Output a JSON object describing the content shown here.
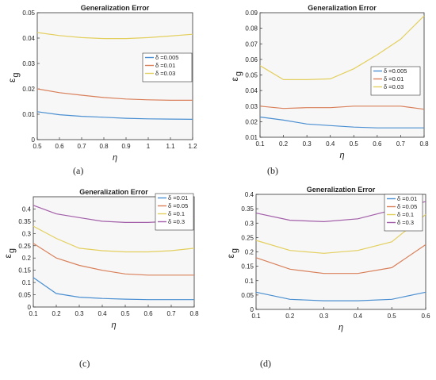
{
  "colors": {
    "series": [
      "#4a8fd1",
      "#d9805a",
      "#e3cf5e",
      "#a25ea8"
    ],
    "axis": "#333333",
    "grid": "#e6e6e6",
    "plot_bg": "#f7f7f7",
    "text": "#222222"
  },
  "chart_data": [
    {
      "type": "line",
      "caption": "(a)",
      "title": "Generalization Error",
      "ylabel_main": "ε",
      "ylabel_sub": "g",
      "xlabel": "η",
      "xlim": [
        0.5,
        1.2
      ],
      "ylim": [
        0,
        0.05
      ],
      "xticks": [
        "0.5",
        "0.6",
        "0.7",
        "0.8",
        "0.9",
        "1",
        "1.1",
        "1.2"
      ],
      "xtick_values": [
        0.5,
        0.6,
        0.7,
        0.8,
        0.9,
        1.0,
        1.1,
        1.2
      ],
      "yticks": [
        "0",
        "0.01",
        "0.02",
        "0.03",
        "0.04",
        "0.05"
      ],
      "ytick_values": [
        0,
        0.01,
        0.02,
        0.03,
        0.04,
        0.05
      ],
      "legend_placement": "center-right",
      "x": [
        0.5,
        0.6,
        0.7,
        0.8,
        0.9,
        1.0,
        1.1,
        1.2
      ],
      "series": [
        {
          "name": "δ =0.005",
          "color_index": 0,
          "values": [
            0.011,
            0.0098,
            0.0092,
            0.0088,
            0.0084,
            0.0082,
            0.0081,
            0.008
          ]
        },
        {
          "name": "δ =0.01",
          "color_index": 1,
          "values": [
            0.02,
            0.0185,
            0.0175,
            0.0166,
            0.016,
            0.0157,
            0.0155,
            0.0155
          ]
        },
        {
          "name": "δ =0.03",
          "color_index": 2,
          "values": [
            0.0422,
            0.041,
            0.0402,
            0.0398,
            0.0398,
            0.0402,
            0.0408,
            0.0415
          ]
        }
      ]
    },
    {
      "type": "line",
      "caption": "(b)",
      "title": "Generalization Error",
      "ylabel_main": "ε",
      "ylabel_sub": "g",
      "xlabel": "η",
      "xlim": [
        0.1,
        0.8
      ],
      "ylim": [
        0.01,
        0.09
      ],
      "xticks": [
        "0.1",
        "0.2",
        "0.3",
        "0.4",
        "0.5",
        "0.6",
        "0.7",
        "0.8"
      ],
      "xtick_values": [
        0.1,
        0.2,
        0.3,
        0.4,
        0.5,
        0.6,
        0.7,
        0.8
      ],
      "yticks": [
        "0.01",
        "0.02",
        "0.03",
        "0.04",
        "0.05",
        "0.06",
        "0.07",
        "0.08",
        "0.09"
      ],
      "ytick_values": [
        0.01,
        0.02,
        0.03,
        0.04,
        0.05,
        0.06,
        0.07,
        0.08,
        0.09
      ],
      "legend_placement": "center-right",
      "x": [
        0.1,
        0.2,
        0.3,
        0.4,
        0.5,
        0.6,
        0.7,
        0.8
      ],
      "series": [
        {
          "name": "δ =0.005",
          "color_index": 0,
          "values": [
            0.023,
            0.021,
            0.0185,
            0.0175,
            0.0165,
            0.016,
            0.016,
            0.016
          ]
        },
        {
          "name": "δ =0.01",
          "color_index": 1,
          "values": [
            0.03,
            0.0285,
            0.029,
            0.029,
            0.03,
            0.03,
            0.03,
            0.028
          ]
        },
        {
          "name": "δ =0.03",
          "color_index": 2,
          "values": [
            0.056,
            0.047,
            0.047,
            0.0475,
            0.054,
            0.063,
            0.073,
            0.088
          ]
        }
      ]
    },
    {
      "type": "line",
      "caption": "(c)",
      "title": "Generalization Error",
      "ylabel_main": "ε",
      "ylabel_sub": "g",
      "xlabel": "η",
      "xlim": [
        0.1,
        0.8
      ],
      "ylim": [
        0,
        0.45
      ],
      "xticks": [
        "0.1",
        "0.2",
        "0.3",
        "0.4",
        "0.5",
        "0.6",
        "0.7",
        "0.8"
      ],
      "xtick_values": [
        0.1,
        0.2,
        0.3,
        0.4,
        0.5,
        0.6,
        0.7,
        0.8
      ],
      "yticks": [
        "0",
        "0.05",
        "0.1",
        "0.15",
        "0.2",
        "0.25",
        "0.3",
        "0.35",
        "0.4"
      ],
      "ytick_values": [
        0,
        0.05,
        0.1,
        0.15,
        0.2,
        0.25,
        0.3,
        0.35,
        0.4
      ],
      "legend_placement": "top-right",
      "x": [
        0.1,
        0.2,
        0.3,
        0.4,
        0.5,
        0.6,
        0.7,
        0.8
      ],
      "series": [
        {
          "name": "δ =0.01",
          "color_index": 0,
          "values": [
            0.12,
            0.055,
            0.04,
            0.035,
            0.032,
            0.03,
            0.03,
            0.03
          ]
        },
        {
          "name": "δ =0.05",
          "color_index": 1,
          "values": [
            0.26,
            0.2,
            0.17,
            0.15,
            0.135,
            0.13,
            0.13,
            0.13
          ]
        },
        {
          "name": "δ =0.1",
          "color_index": 2,
          "values": [
            0.33,
            0.28,
            0.24,
            0.23,
            0.225,
            0.225,
            0.23,
            0.24
          ]
        },
        {
          "name": "δ =0.3",
          "color_index": 3,
          "values": [
            0.415,
            0.38,
            0.365,
            0.35,
            0.345,
            0.345,
            0.35,
            0.37
          ]
        }
      ]
    },
    {
      "type": "line",
      "caption": "(d)",
      "title": "Generalization Error",
      "ylabel_main": "ε",
      "ylabel_sub": "g",
      "xlabel": "η",
      "xlim": [
        0.1,
        0.6
      ],
      "ylim": [
        0,
        0.4
      ],
      "xticks": [
        "0.1",
        "0.2",
        "0.3",
        "0.4",
        "0.5",
        "0.6"
      ],
      "xtick_values": [
        0.1,
        0.2,
        0.3,
        0.4,
        0.5,
        0.6
      ],
      "yticks": [
        "0",
        "0.05",
        "0.1",
        "0.15",
        "0.2",
        "0.25",
        "0.3",
        "0.35",
        "0.4"
      ],
      "ytick_values": [
        0,
        0.05,
        0.1,
        0.15,
        0.2,
        0.25,
        0.3,
        0.35,
        0.4
      ],
      "legend_placement": "top-right",
      "x": [
        0.1,
        0.2,
        0.3,
        0.4,
        0.5,
        0.6
      ],
      "series": [
        {
          "name": "δ =0.01",
          "color_index": 0,
          "values": [
            0.06,
            0.035,
            0.03,
            0.03,
            0.035,
            0.06
          ]
        },
        {
          "name": "δ =0.05",
          "color_index": 1,
          "values": [
            0.18,
            0.14,
            0.125,
            0.125,
            0.145,
            0.225
          ]
        },
        {
          "name": "δ =0.1",
          "color_index": 2,
          "values": [
            0.24,
            0.205,
            0.195,
            0.205,
            0.235,
            0.33
          ]
        },
        {
          "name": "δ =0.3",
          "color_index": 3,
          "values": [
            0.335,
            0.31,
            0.305,
            0.315,
            0.345,
            0.375
          ]
        }
      ]
    }
  ]
}
